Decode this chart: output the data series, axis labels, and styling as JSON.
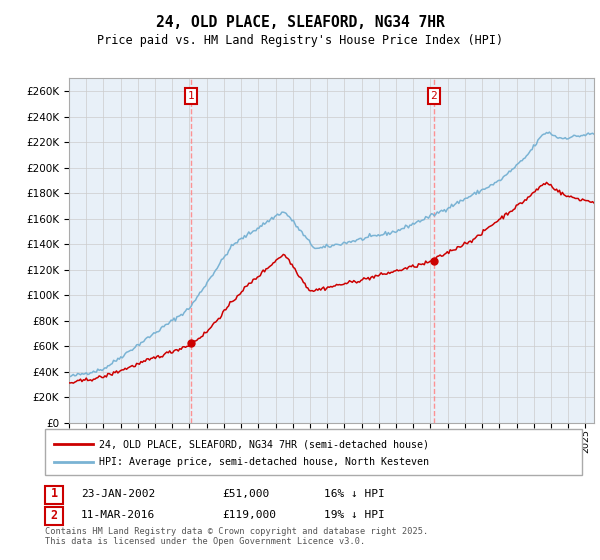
{
  "title": "24, OLD PLACE, SLEAFORD, NG34 7HR",
  "subtitle": "Price paid vs. HM Land Registry's House Price Index (HPI)",
  "legend_line1": "24, OLD PLACE, SLEAFORD, NG34 7HR (semi-detached house)",
  "legend_line2": "HPI: Average price, semi-detached house, North Kesteven",
  "annotation1_date": "23-JAN-2002",
  "annotation1_price": "£51,000",
  "annotation1_hpi": "16% ↓ HPI",
  "annotation2_date": "11-MAR-2016",
  "annotation2_price": "£119,000",
  "annotation2_hpi": "19% ↓ HPI",
  "footer": "Contains HM Land Registry data © Crown copyright and database right 2025.\nThis data is licensed under the Open Government Licence v3.0.",
  "red_color": "#cc0000",
  "blue_color": "#7ab3d4",
  "vline_color": "#ff8888",
  "grid_color": "#cccccc",
  "annotation_box_color": "#cc0000",
  "bg_color": "#e8f0f8",
  "ylim": [
    0,
    270000
  ],
  "ytick_step": 20000,
  "purchase1_year": 2002.07,
  "purchase1_price": 51000,
  "purchase2_year": 2016.19,
  "purchase2_price": 119000
}
